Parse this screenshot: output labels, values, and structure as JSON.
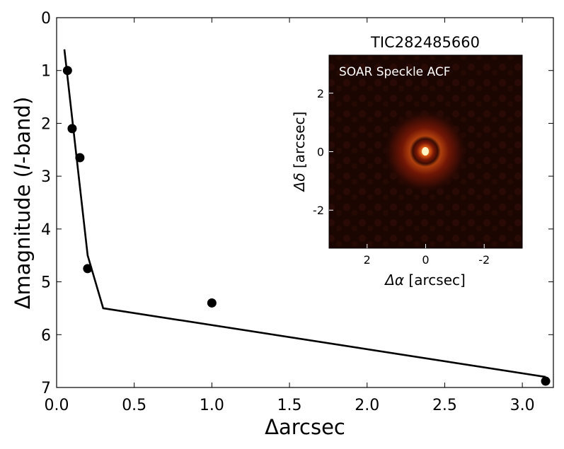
{
  "chart_data": [
    {
      "type": "line",
      "xlabel": "Δarcsec",
      "ylabel_prefix": "Δmagnitude (",
      "ylabel_italic": "I",
      "ylabel_suffix": "-band)",
      "xlim": [
        0.0,
        3.2
      ],
      "ylim": [
        7.0,
        0.0
      ],
      "y_inverted": true,
      "grid": false,
      "xticks": [
        0.0,
        0.5,
        1.0,
        1.5,
        2.0,
        2.5,
        3.0
      ],
      "xtick_labels": [
        "0.0",
        "0.5",
        "1.0",
        "1.5",
        "2.0",
        "2.5",
        "3.0"
      ],
      "yticks": [
        0,
        1,
        2,
        3,
        4,
        5,
        6,
        7
      ],
      "ytick_labels": [
        "0",
        "1",
        "2",
        "3",
        "4",
        "5",
        "6",
        "7"
      ],
      "series": [
        {
          "kind": "line",
          "x": [
            0.05,
            0.2,
            0.3,
            3.15
          ],
          "y": [
            0.6,
            4.5,
            5.5,
            6.8
          ],
          "color": "#000000"
        },
        {
          "kind": "scatter",
          "x": [
            0.07,
            0.1,
            0.15,
            0.2,
            1.0,
            3.15
          ],
          "y": [
            1.0,
            2.1,
            2.65,
            4.75,
            5.4,
            6.88
          ],
          "color": "#000000"
        }
      ]
    },
    {
      "type": "heatmap",
      "title": "TIC282485660",
      "annotation": "SOAR Speckle ACF",
      "xlabel_symbol": "Δα",
      "xlabel_unit": " [arcsec]",
      "ylabel_symbol": "Δδ",
      "ylabel_unit": " [arcsec]",
      "xlim": [
        3.3,
        -3.3
      ],
      "ylim": [
        -3.3,
        3.3
      ],
      "xticks": [
        2,
        0,
        -2
      ],
      "xtick_labels": [
        "2",
        "0",
        "-2"
      ],
      "yticks": [
        2,
        0,
        -2
      ],
      "ytick_labels": [
        "2",
        "0",
        "-2"
      ],
      "colormap": "afmhot",
      "background_color": "#1c0602",
      "peak_color": "#fff6c8"
    }
  ]
}
